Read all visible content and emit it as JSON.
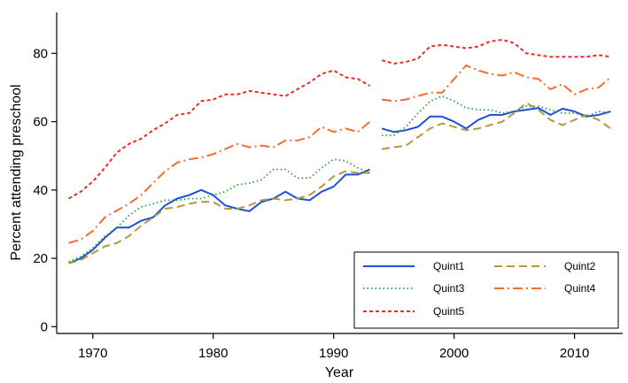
{
  "chart_data": {
    "type": "line",
    "title": "",
    "xlabel": "Year",
    "ylabel": "Percent attending preschool",
    "xlim": [
      1967,
      2014
    ],
    "ylim": [
      -2,
      92
    ],
    "xticks": [
      1970,
      1980,
      1990,
      2000,
      2010
    ],
    "yticks": [
      0,
      20,
      40,
      60,
      80
    ],
    "grid": false,
    "legend": {
      "position": "bottom-right",
      "columns": 2
    },
    "series": [
      {
        "name": "Quint1",
        "color": "#1f4fd8",
        "dash": "solid",
        "points": [
          [
            1968,
            18.5
          ],
          [
            1969,
            20
          ],
          [
            1970,
            22.5
          ],
          [
            1971,
            26
          ],
          [
            1972,
            29
          ],
          [
            1973,
            29
          ],
          [
            1974,
            31
          ],
          [
            1975,
            32
          ],
          [
            1976,
            35.5
          ],
          [
            1977,
            37.5
          ],
          [
            1978,
            38.5
          ],
          [
            1979,
            40
          ],
          [
            1980,
            38.5
          ],
          [
            1981,
            35.5
          ],
          [
            1982,
            34.5
          ],
          [
            1983,
            33.8
          ],
          [
            1984,
            36.5
          ],
          [
            1985,
            37.5
          ],
          [
            1986,
            39.5
          ],
          [
            1987,
            37.5
          ],
          [
            1988,
            37
          ],
          [
            1989,
            39.5
          ],
          [
            1990,
            41
          ],
          [
            1991,
            44.5
          ],
          [
            1992,
            44.5
          ],
          [
            1993,
            46
          ],
          null,
          [
            1994,
            58
          ],
          [
            1995,
            57
          ],
          [
            1996,
            57.5
          ],
          [
            1997,
            58.5
          ],
          [
            1998,
            61.5
          ],
          [
            1999,
            61.5
          ],
          [
            2000,
            60
          ],
          [
            2001,
            58
          ],
          [
            2002,
            60.5
          ],
          [
            2003,
            62
          ],
          [
            2004,
            62
          ],
          [
            2005,
            63
          ],
          [
            2006,
            63.5
          ],
          [
            2007,
            64
          ],
          [
            2008,
            62
          ],
          [
            2009,
            63.8
          ],
          [
            2010,
            63
          ],
          [
            2011,
            61.5
          ],
          [
            2012,
            62
          ],
          [
            2013,
            63
          ]
        ]
      },
      {
        "name": "Quint2",
        "color": "#b8963c",
        "dash": "9,5",
        "points": [
          [
            1968,
            18.5
          ],
          [
            1969,
            19.5
          ],
          [
            1970,
            21.5
          ],
          [
            1971,
            23.5
          ],
          [
            1972,
            24.5
          ],
          [
            1973,
            26.5
          ],
          [
            1974,
            29.5
          ],
          [
            1975,
            32
          ],
          [
            1976,
            34.5
          ],
          [
            1977,
            35
          ],
          [
            1978,
            36
          ],
          [
            1979,
            36.5
          ],
          [
            1980,
            36.5
          ],
          [
            1981,
            34.5
          ],
          [
            1982,
            34.5
          ],
          [
            1983,
            35.5
          ],
          [
            1984,
            37
          ],
          [
            1985,
            37.5
          ],
          [
            1986,
            37
          ],
          [
            1987,
            37.5
          ],
          [
            1988,
            38.5
          ],
          [
            1989,
            41
          ],
          [
            1990,
            44
          ],
          [
            1991,
            45.5
          ],
          [
            1992,
            45
          ],
          [
            1993,
            45
          ],
          null,
          [
            1994,
            52
          ],
          [
            1995,
            52.5
          ],
          [
            1996,
            53
          ],
          [
            1997,
            55.5
          ],
          [
            1998,
            58
          ],
          [
            1999,
            59.5
          ],
          [
            2000,
            58.5
          ],
          [
            2001,
            57.5
          ],
          [
            2002,
            58
          ],
          [
            2003,
            59
          ],
          [
            2004,
            60
          ],
          [
            2005,
            62.5
          ],
          [
            2006,
            65.5
          ],
          [
            2007,
            63.5
          ],
          [
            2008,
            60.5
          ],
          [
            2009,
            59
          ],
          [
            2010,
            60.5
          ],
          [
            2011,
            62
          ],
          [
            2012,
            60.5
          ],
          [
            2013,
            58
          ]
        ]
      },
      {
        "name": "Quint3",
        "color": "#2e9e3e",
        "dash": "1.5,3",
        "points": [
          [
            1968,
            19
          ],
          [
            1969,
            20.5
          ],
          [
            1970,
            23
          ],
          [
            1971,
            26.5
          ],
          [
            1972,
            29
          ],
          [
            1973,
            32.5
          ],
          [
            1974,
            35
          ],
          [
            1975,
            36
          ],
          [
            1976,
            37
          ],
          [
            1977,
            37
          ],
          [
            1978,
            37.5
          ],
          [
            1979,
            37.5
          ],
          [
            1980,
            38.5
          ],
          [
            1981,
            39.5
          ],
          [
            1982,
            41.5
          ],
          [
            1983,
            42
          ],
          [
            1984,
            43
          ],
          [
            1985,
            46
          ],
          [
            1986,
            46
          ],
          [
            1987,
            43.5
          ],
          [
            1988,
            43.5
          ],
          [
            1989,
            46.5
          ],
          [
            1990,
            49
          ],
          [
            1991,
            48.5
          ],
          [
            1992,
            46.5
          ],
          [
            1993,
            45
          ],
          null,
          [
            1994,
            56
          ],
          [
            1995,
            56
          ],
          [
            1996,
            58.5
          ],
          [
            1997,
            62.5
          ],
          [
            1998,
            66
          ],
          [
            1999,
            67.5
          ],
          [
            2000,
            66
          ],
          [
            2001,
            64
          ],
          [
            2002,
            63.5
          ],
          [
            2003,
            63.5
          ],
          [
            2004,
            62.5
          ],
          [
            2005,
            63
          ],
          [
            2006,
            64.5
          ],
          [
            2007,
            64.5
          ],
          [
            2008,
            63.5
          ],
          [
            2009,
            62.5
          ],
          [
            2010,
            62.5
          ],
          [
            2011,
            61.5
          ],
          [
            2012,
            63
          ],
          [
            2013,
            62.5
          ]
        ]
      },
      {
        "name": "Quint4",
        "color": "#f26d2f",
        "dash": "11,4,2,4",
        "points": [
          [
            1968,
            24.5
          ],
          [
            1969,
            25.5
          ],
          [
            1970,
            28
          ],
          [
            1971,
            32
          ],
          [
            1972,
            34
          ],
          [
            1973,
            36
          ],
          [
            1974,
            38.5
          ],
          [
            1975,
            42
          ],
          [
            1976,
            45.5
          ],
          [
            1977,
            48
          ],
          [
            1978,
            49
          ],
          [
            1979,
            49.5
          ],
          [
            1980,
            50.5
          ],
          [
            1981,
            52
          ],
          [
            1982,
            53.5
          ],
          [
            1983,
            52.5
          ],
          [
            1984,
            53
          ],
          [
            1985,
            52.5
          ],
          [
            1986,
            54.5
          ],
          [
            1987,
            54.5
          ],
          [
            1988,
            55.5
          ],
          [
            1989,
            58.5
          ],
          [
            1990,
            57
          ],
          [
            1991,
            58
          ],
          [
            1992,
            57
          ],
          [
            1993,
            60
          ],
          null,
          [
            1994,
            66.5
          ],
          [
            1995,
            66
          ],
          [
            1996,
            66.5
          ],
          [
            1997,
            67.5
          ],
          [
            1998,
            68.5
          ],
          [
            1999,
            68.5
          ],
          [
            2000,
            72.5
          ],
          [
            2001,
            76.5
          ],
          [
            2002,
            75
          ],
          [
            2003,
            74
          ],
          [
            2004,
            73.5
          ],
          [
            2005,
            74.5
          ],
          [
            2006,
            73
          ],
          [
            2007,
            72.5
          ],
          [
            2008,
            69.5
          ],
          [
            2009,
            71
          ],
          [
            2010,
            68
          ],
          [
            2011,
            69.5
          ],
          [
            2012,
            70
          ],
          [
            2013,
            73
          ]
        ]
      },
      {
        "name": "Quint5",
        "color": "#ec2b2b",
        "dash": "4,3",
        "points": [
          [
            1968,
            37.5
          ],
          [
            1969,
            39.5
          ],
          [
            1970,
            42.5
          ],
          [
            1971,
            46.5
          ],
          [
            1972,
            51
          ],
          [
            1973,
            53.5
          ],
          [
            1974,
            55
          ],
          [
            1975,
            57.5
          ],
          [
            1976,
            59.5
          ],
          [
            1977,
            62
          ],
          [
            1978,
            62.5
          ],
          [
            1979,
            66
          ],
          [
            1980,
            66.5
          ],
          [
            1981,
            68
          ],
          [
            1982,
            68
          ],
          [
            1983,
            69
          ],
          [
            1984,
            68.5
          ],
          [
            1985,
            68
          ],
          [
            1986,
            67.5
          ],
          [
            1987,
            69.5
          ],
          [
            1988,
            71.5
          ],
          [
            1989,
            74
          ],
          [
            1990,
            75
          ],
          [
            1991,
            73
          ],
          [
            1992,
            72.5
          ],
          [
            1993,
            70.5
          ],
          null,
          [
            1994,
            78
          ],
          [
            1995,
            77
          ],
          [
            1996,
            77.5
          ],
          [
            1997,
            78.5
          ],
          [
            1998,
            82
          ],
          [
            1999,
            82.5
          ],
          [
            2000,
            82
          ],
          [
            2001,
            81.5
          ],
          [
            2002,
            82
          ],
          [
            2003,
            83.5
          ],
          [
            2004,
            84
          ],
          [
            2005,
            83
          ],
          [
            2006,
            80
          ],
          [
            2007,
            79.5
          ],
          [
            2008,
            79
          ],
          [
            2009,
            79
          ],
          [
            2010,
            79
          ],
          [
            2011,
            79
          ],
          [
            2012,
            79.5
          ],
          [
            2013,
            79
          ]
        ]
      }
    ]
  }
}
